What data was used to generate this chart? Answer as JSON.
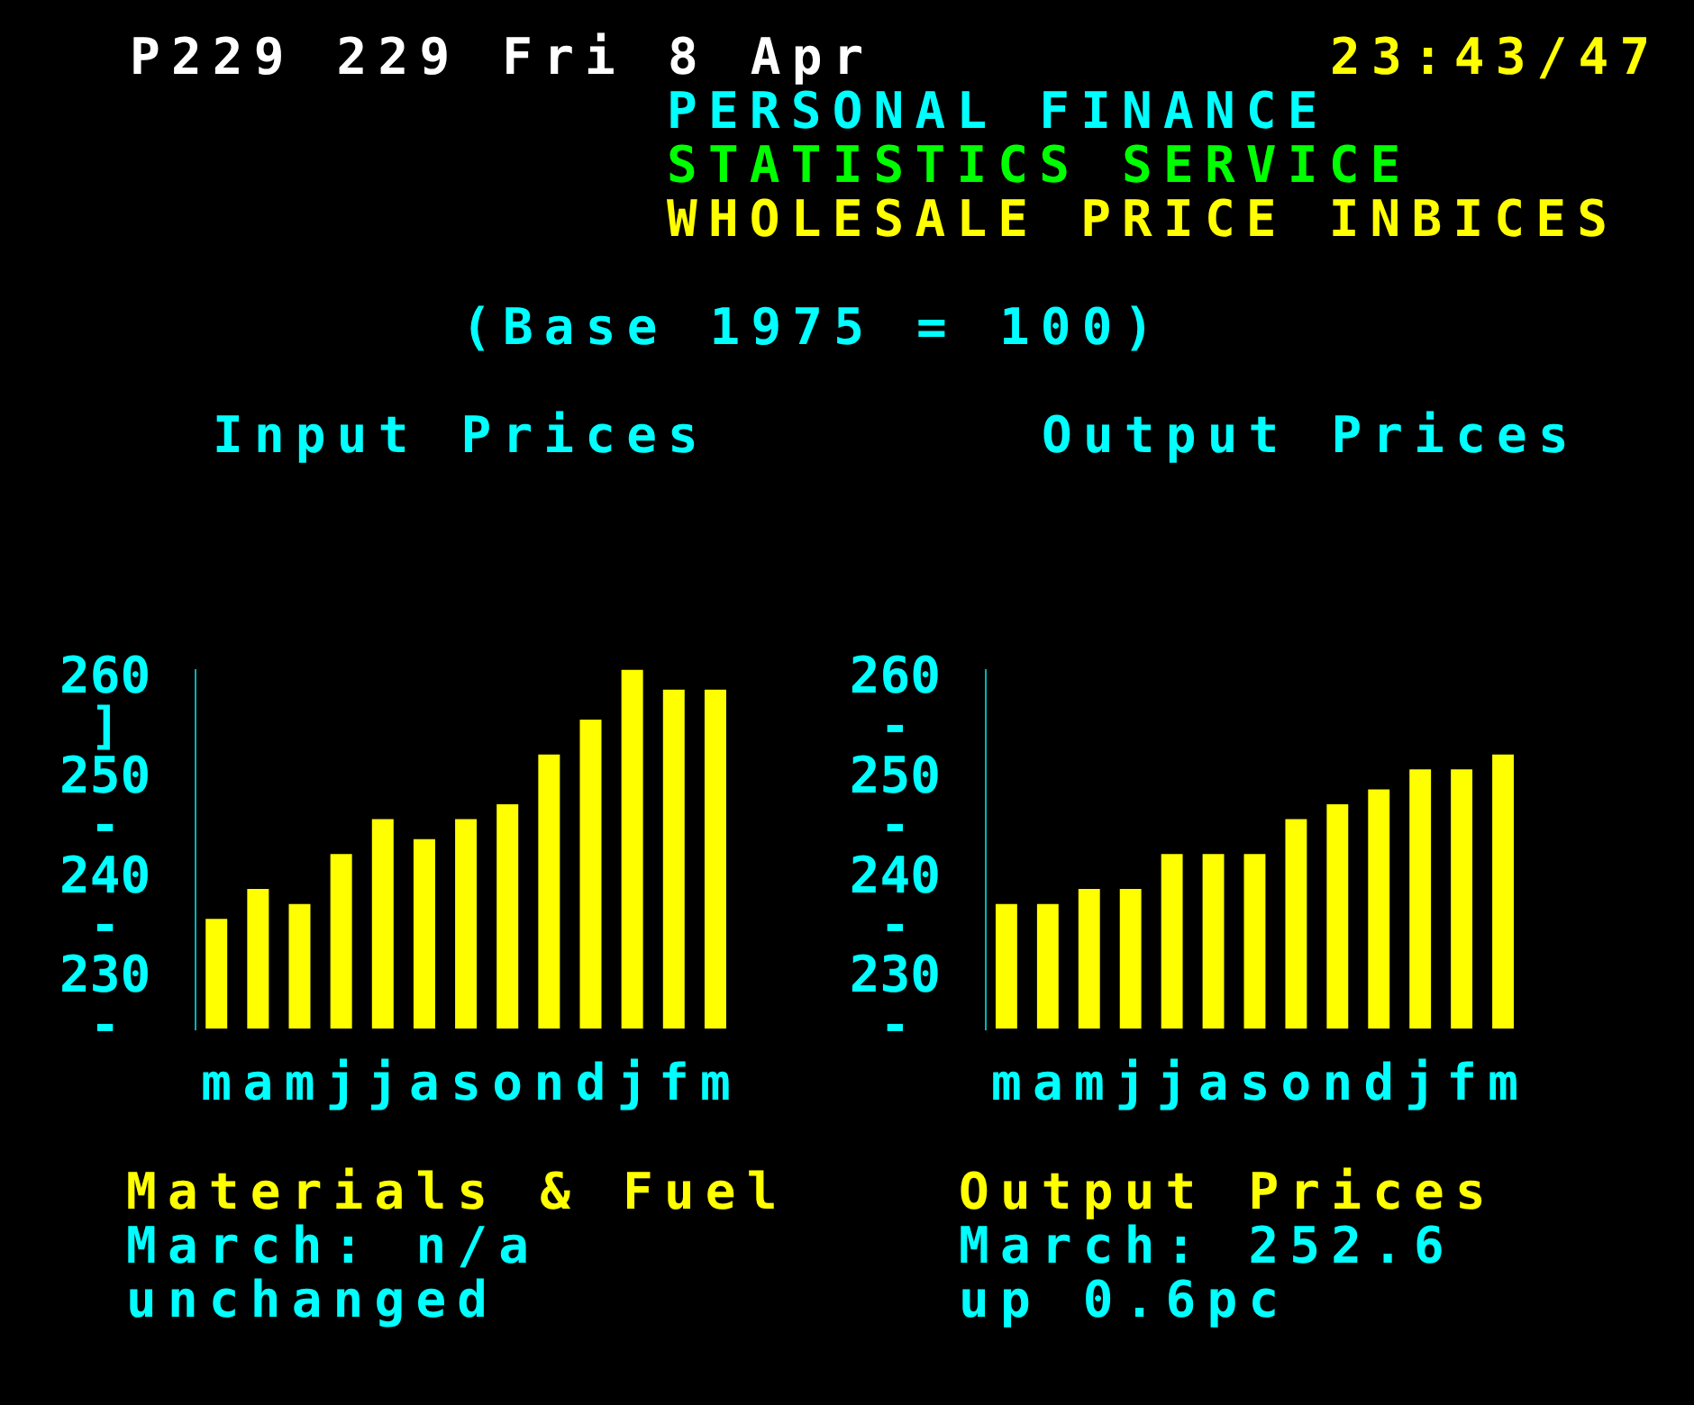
{
  "chart_data": [
    {
      "type": "other",
      "annotations": [
        "P229 229 Fri 8 Apr",
        "23:43/47",
        "PERSONAL FINANCE",
        "STATISTICS SERVICE",
        "WHOLESALE PRICE INBICES",
        "(Base 1975 = 100)"
      ]
    },
    {
      "type": "bar",
      "title": "Input Prices",
      "categories": [
        "m",
        "a",
        "m",
        "j",
        "j",
        "a",
        "s",
        "o",
        "n",
        "d",
        "j",
        "f",
        "m"
      ],
      "values": [
        236,
        239,
        237.5,
        242.5,
        246,
        244,
        246,
        247.5,
        252.5,
        256,
        261,
        259,
        259
      ],
      "color": "#ffff00",
      "ylim": [
        225,
        261
      ],
      "yticks": [
        {
          "value": 225,
          "label": "-"
        },
        230,
        {
          "value": 235,
          "label": "-"
        },
        240,
        {
          "value": 245,
          "label": "-"
        },
        250,
        {
          "value": 255,
          "label": "]"
        },
        260
      ],
      "grid": false,
      "legend": false,
      "annotations": [
        "Materials & Fuel",
        "March: n/a",
        "unchanged"
      ]
    },
    {
      "type": "bar",
      "title": "Output Prices",
      "categories": [
        "m",
        "a",
        "m",
        "j",
        "j",
        "a",
        "s",
        "o",
        "n",
        "d",
        "j",
        "f",
        "m"
      ],
      "values": [
        237.5,
        237.5,
        239,
        239,
        242.5,
        242.5,
        242.5,
        246,
        247.5,
        249,
        251,
        251,
        252.5
      ],
      "color": "#ffff00",
      "ylim": [
        225,
        261
      ],
      "yticks": [
        {
          "value": 225,
          "label": "-"
        },
        230,
        {
          "value": 235,
          "label": "-"
        },
        240,
        {
          "value": 245,
          "label": "-"
        },
        250,
        {
          "value": 255,
          "label": "-"
        },
        260
      ],
      "grid": false,
      "legend": false,
      "annotations": [
        "Output Prices",
        "March: 252.6",
        "up 0.6pc"
      ]
    }
  ]
}
